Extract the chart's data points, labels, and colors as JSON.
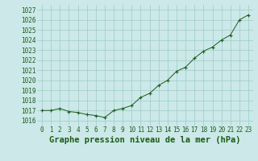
{
  "x": [
    0,
    1,
    2,
    3,
    4,
    5,
    6,
    7,
    8,
    9,
    10,
    11,
    12,
    13,
    14,
    15,
    16,
    17,
    18,
    19,
    20,
    21,
    22,
    23
  ],
  "y": [
    1017.0,
    1017.0,
    1017.2,
    1016.9,
    1016.8,
    1016.6,
    1016.5,
    1016.3,
    1017.0,
    1017.2,
    1017.5,
    1018.3,
    1018.7,
    1019.5,
    1020.0,
    1020.9,
    1021.3,
    1022.2,
    1022.9,
    1023.3,
    1024.0,
    1024.5,
    1026.0,
    1026.5
  ],
  "ylim": [
    1015.5,
    1027.5
  ],
  "yticks": [
    1016,
    1017,
    1018,
    1019,
    1020,
    1021,
    1022,
    1023,
    1024,
    1025,
    1026,
    1027
  ],
  "xticks": [
    0,
    1,
    2,
    3,
    4,
    5,
    6,
    7,
    8,
    9,
    10,
    11,
    12,
    13,
    14,
    15,
    16,
    17,
    18,
    19,
    20,
    21,
    22,
    23
  ],
  "xlabel": "Graphe pression niveau de la mer (hPa)",
  "line_color": "#1a5c1a",
  "marker": "+",
  "marker_color": "#1a5c1a",
  "bg_color": "#cce8e8",
  "grid_color": "#99cccc",
  "tick_color": "#1a5c1a",
  "label_color": "#1a5c1a",
  "tick_fontsize": 5.5,
  "xlabel_fontsize": 7.5
}
